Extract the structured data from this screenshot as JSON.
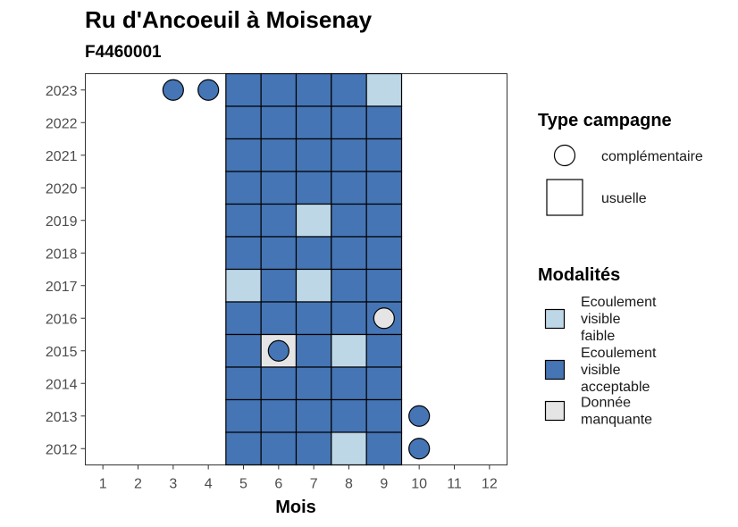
{
  "chart_data": {
    "type": "heatmap",
    "title": "Ru d'Ancoeuil à Moisenay",
    "subtitle": "F4460001",
    "xlabel": "Mois",
    "ylabel": "",
    "x_ticks": [
      1,
      2,
      3,
      4,
      5,
      6,
      7,
      8,
      9,
      10,
      11,
      12
    ],
    "y_ticks": [
      2012,
      2013,
      2014,
      2015,
      2016,
      2017,
      2018,
      2019,
      2020,
      2021,
      2022,
      2023
    ],
    "xlim": [
      0.5,
      12.5
    ],
    "ylim": [
      2011.5,
      2023.5
    ],
    "colors": {
      "Ecoulement visible faible": "#bdd7e7",
      "Ecoulement visible acceptable": "#4575b4",
      "Donnée manquante": "#e5e5e5"
    },
    "cells": [
      {
        "year": 2023,
        "month": 5,
        "mod": "Ecoulement visible acceptable"
      },
      {
        "year": 2023,
        "month": 6,
        "mod": "Ecoulement visible acceptable"
      },
      {
        "year": 2023,
        "month": 7,
        "mod": "Ecoulement visible acceptable"
      },
      {
        "year": 2023,
        "month": 8,
        "mod": "Ecoulement visible acceptable"
      },
      {
        "year": 2023,
        "month": 9,
        "mod": "Ecoulement visible faible"
      },
      {
        "year": 2022,
        "month": 5,
        "mod": "Ecoulement visible acceptable"
      },
      {
        "year": 2022,
        "month": 6,
        "mod": "Ecoulement visible acceptable"
      },
      {
        "year": 2022,
        "month": 7,
        "mod": "Ecoulement visible acceptable"
      },
      {
        "year": 2022,
        "month": 8,
        "mod": "Ecoulement visible acceptable"
      },
      {
        "year": 2022,
        "month": 9,
        "mod": "Ecoulement visible acceptable"
      },
      {
        "year": 2021,
        "month": 5,
        "mod": "Ecoulement visible acceptable"
      },
      {
        "year": 2021,
        "month": 6,
        "mod": "Ecoulement visible acceptable"
      },
      {
        "year": 2021,
        "month": 7,
        "mod": "Ecoulement visible acceptable"
      },
      {
        "year": 2021,
        "month": 8,
        "mod": "Ecoulement visible acceptable"
      },
      {
        "year": 2021,
        "month": 9,
        "mod": "Ecoulement visible acceptable"
      },
      {
        "year": 2020,
        "month": 5,
        "mod": "Ecoulement visible acceptable"
      },
      {
        "year": 2020,
        "month": 6,
        "mod": "Ecoulement visible acceptable"
      },
      {
        "year": 2020,
        "month": 7,
        "mod": "Ecoulement visible acceptable"
      },
      {
        "year": 2020,
        "month": 8,
        "mod": "Ecoulement visible acceptable"
      },
      {
        "year": 2020,
        "month": 9,
        "mod": "Ecoulement visible acceptable"
      },
      {
        "year": 2019,
        "month": 5,
        "mod": "Ecoulement visible acceptable"
      },
      {
        "year": 2019,
        "month": 6,
        "mod": "Ecoulement visible acceptable"
      },
      {
        "year": 2019,
        "month": 7,
        "mod": "Ecoulement visible faible"
      },
      {
        "year": 2019,
        "month": 8,
        "mod": "Ecoulement visible acceptable"
      },
      {
        "year": 2019,
        "month": 9,
        "mod": "Ecoulement visible acceptable"
      },
      {
        "year": 2018,
        "month": 5,
        "mod": "Ecoulement visible acceptable"
      },
      {
        "year": 2018,
        "month": 6,
        "mod": "Ecoulement visible acceptable"
      },
      {
        "year": 2018,
        "month": 7,
        "mod": "Ecoulement visible acceptable"
      },
      {
        "year": 2018,
        "month": 8,
        "mod": "Ecoulement visible acceptable"
      },
      {
        "year": 2018,
        "month": 9,
        "mod": "Ecoulement visible acceptable"
      },
      {
        "year": 2017,
        "month": 5,
        "mod": "Ecoulement visible faible"
      },
      {
        "year": 2017,
        "month": 6,
        "mod": "Ecoulement visible acceptable"
      },
      {
        "year": 2017,
        "month": 7,
        "mod": "Ecoulement visible faible"
      },
      {
        "year": 2017,
        "month": 8,
        "mod": "Ecoulement visible acceptable"
      },
      {
        "year": 2017,
        "month": 9,
        "mod": "Ecoulement visible acceptable"
      },
      {
        "year": 2016,
        "month": 5,
        "mod": "Ecoulement visible acceptable"
      },
      {
        "year": 2016,
        "month": 6,
        "mod": "Ecoulement visible acceptable"
      },
      {
        "year": 2016,
        "month": 7,
        "mod": "Ecoulement visible acceptable"
      },
      {
        "year": 2016,
        "month": 8,
        "mod": "Ecoulement visible acceptable"
      },
      {
        "year": 2016,
        "month": 9,
        "mod": "Ecoulement visible acceptable"
      },
      {
        "year": 2015,
        "month": 5,
        "mod": "Ecoulement visible acceptable"
      },
      {
        "year": 2015,
        "month": 6,
        "mod": "Donnée manquante"
      },
      {
        "year": 2015,
        "month": 7,
        "mod": "Ecoulement visible acceptable"
      },
      {
        "year": 2015,
        "month": 8,
        "mod": "Ecoulement visible faible"
      },
      {
        "year": 2015,
        "month": 9,
        "mod": "Ecoulement visible acceptable"
      },
      {
        "year": 2014,
        "month": 5,
        "mod": "Ecoulement visible acceptable"
      },
      {
        "year": 2014,
        "month": 6,
        "mod": "Ecoulement visible acceptable"
      },
      {
        "year": 2014,
        "month": 7,
        "mod": "Ecoulement visible acceptable"
      },
      {
        "year": 2014,
        "month": 8,
        "mod": "Ecoulement visible acceptable"
      },
      {
        "year": 2014,
        "month": 9,
        "mod": "Ecoulement visible acceptable"
      },
      {
        "year": 2013,
        "month": 5,
        "mod": "Ecoulement visible acceptable"
      },
      {
        "year": 2013,
        "month": 6,
        "mod": "Ecoulement visible acceptable"
      },
      {
        "year": 2013,
        "month": 7,
        "mod": "Ecoulement visible acceptable"
      },
      {
        "year": 2013,
        "month": 8,
        "mod": "Ecoulement visible acceptable"
      },
      {
        "year": 2013,
        "month": 9,
        "mod": "Ecoulement visible acceptable"
      },
      {
        "year": 2012,
        "month": 5,
        "mod": "Ecoulement visible acceptable"
      },
      {
        "year": 2012,
        "month": 6,
        "mod": "Ecoulement visible acceptable"
      },
      {
        "year": 2012,
        "month": 7,
        "mod": "Ecoulement visible acceptable"
      },
      {
        "year": 2012,
        "month": 8,
        "mod": "Ecoulement visible faible"
      },
      {
        "year": 2012,
        "month": 9,
        "mod": "Ecoulement visible acceptable"
      }
    ],
    "points": [
      {
        "year": 2023,
        "month": 3,
        "mod": "Ecoulement visible acceptable"
      },
      {
        "year": 2023,
        "month": 4,
        "mod": "Ecoulement visible acceptable"
      },
      {
        "year": 2016,
        "month": 9,
        "mod": "Donnée manquante"
      },
      {
        "year": 2015,
        "month": 6,
        "mod": "Ecoulement visible acceptable"
      },
      {
        "year": 2013,
        "month": 10,
        "mod": "Ecoulement visible acceptable"
      },
      {
        "year": 2012,
        "month": 10,
        "mod": "Ecoulement visible acceptable"
      }
    ],
    "legend_type": {
      "title": "Type campagne",
      "items": [
        "complémentaire",
        "usuelle"
      ]
    },
    "legend_mod": {
      "title": "Modalités",
      "items": [
        {
          "lines": [
            "Ecoulement",
            "visible",
            "faible"
          ],
          "mod": "Ecoulement visible faible"
        },
        {
          "lines": [
            "Ecoulement",
            "visible",
            "acceptable"
          ],
          "mod": "Ecoulement visible acceptable"
        },
        {
          "lines": [
            "Donnée",
            "manquante"
          ],
          "mod": "Donnée manquante"
        }
      ]
    },
    "legend_placement": "right",
    "grid": false
  }
}
